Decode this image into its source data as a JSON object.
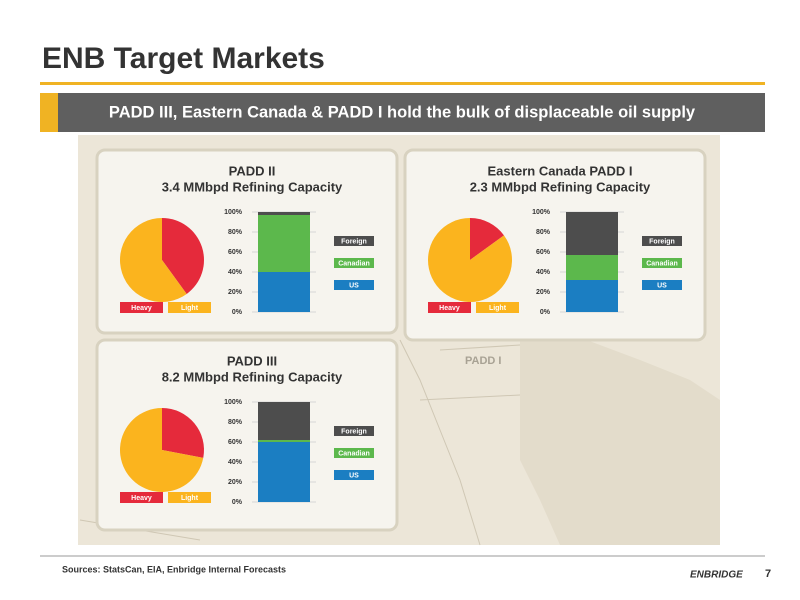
{
  "slide": {
    "title": "ENB Target Markets",
    "banner": "PADD III, Eastern Canada & PADD I hold the bulk of displaceable oil supply",
    "sources": "Sources: StatsCan, EIA, Enbridge Internal Forecasts",
    "logo": "ENBRIDGE",
    "page": "7",
    "map_labels": [
      "PADD I"
    ]
  },
  "chart_data": [
    {
      "type": "pie",
      "title": "PADD II",
      "subtitle": "3.4 MMbpd Refining Capacity",
      "categories": [
        "Heavy",
        "Light"
      ],
      "values": [
        40,
        60
      ],
      "colors": [
        "#e52a3b",
        "#fbb41e"
      ]
    },
    {
      "type": "stacked_bar",
      "categories": [
        null
      ],
      "ylim": [
        0,
        100
      ],
      "yticks": [
        {
          "value": 0,
          "label": "0%"
        },
        {
          "value": 20,
          "label": "20%"
        },
        {
          "value": 40,
          "label": "40%"
        },
        {
          "value": 60,
          "label": "60%"
        },
        {
          "value": 80,
          "label": "80%"
        },
        {
          "value": 100,
          "label": "100%"
        }
      ],
      "series": [
        {
          "name": "US",
          "color": "#1b7ec2",
          "values": [
            40
          ]
        },
        {
          "name": "Canadian",
          "color": "#5cb84c",
          "values": [
            57
          ]
        },
        {
          "name": "Foreign",
          "color": "#4d4d4d",
          "values": [
            3
          ]
        }
      ]
    },
    {
      "type": "pie",
      "title": "Eastern Canada PADD I",
      "subtitle": "2.3 MMbpd Refining Capacity",
      "categories": [
        "Heavy",
        "Light"
      ],
      "values": [
        15,
        85
      ],
      "colors": [
        "#e52a3b",
        "#fbb41e"
      ]
    },
    {
      "type": "stacked_bar",
      "categories": [
        null
      ],
      "ylim": [
        0,
        100
      ],
      "yticks": [
        {
          "value": 0,
          "label": "0%"
        },
        {
          "value": 20,
          "label": "20%"
        },
        {
          "value": 40,
          "label": "40%"
        },
        {
          "value": 60,
          "label": "60%"
        },
        {
          "value": 80,
          "label": "80%"
        },
        {
          "value": 100,
          "label": "100%"
        }
      ],
      "series": [
        {
          "name": "US",
          "color": "#1b7ec2",
          "values": [
            32
          ]
        },
        {
          "name": "Canadian",
          "color": "#5cb84c",
          "values": [
            25
          ]
        },
        {
          "name": "Foreign",
          "color": "#4d4d4d",
          "values": [
            43
          ]
        }
      ]
    },
    {
      "type": "pie",
      "title": "PADD III",
      "subtitle": "8.2 MMbpd Refining Capacity",
      "categories": [
        "Heavy",
        "Light"
      ],
      "values": [
        28,
        72
      ],
      "colors": [
        "#e52a3b",
        "#fbb41e"
      ]
    },
    {
      "type": "stacked_bar",
      "categories": [
        null
      ],
      "ylim": [
        0,
        100
      ],
      "yticks": [
        {
          "value": 0,
          "label": "0%"
        },
        {
          "value": 20,
          "label": "20%"
        },
        {
          "value": 40,
          "label": "40%"
        },
        {
          "value": 60,
          "label": "60%"
        },
        {
          "value": 80,
          "label": "80%"
        },
        {
          "value": 100,
          "label": "100%"
        }
      ],
      "series": [
        {
          "name": "US",
          "color": "#1b7ec2",
          "values": [
            60
          ]
        },
        {
          "name": "Canadian",
          "color": "#5cb84c",
          "values": [
            2
          ]
        },
        {
          "name": "Foreign",
          "color": "#4d4d4d",
          "values": [
            38
          ]
        }
      ]
    }
  ]
}
